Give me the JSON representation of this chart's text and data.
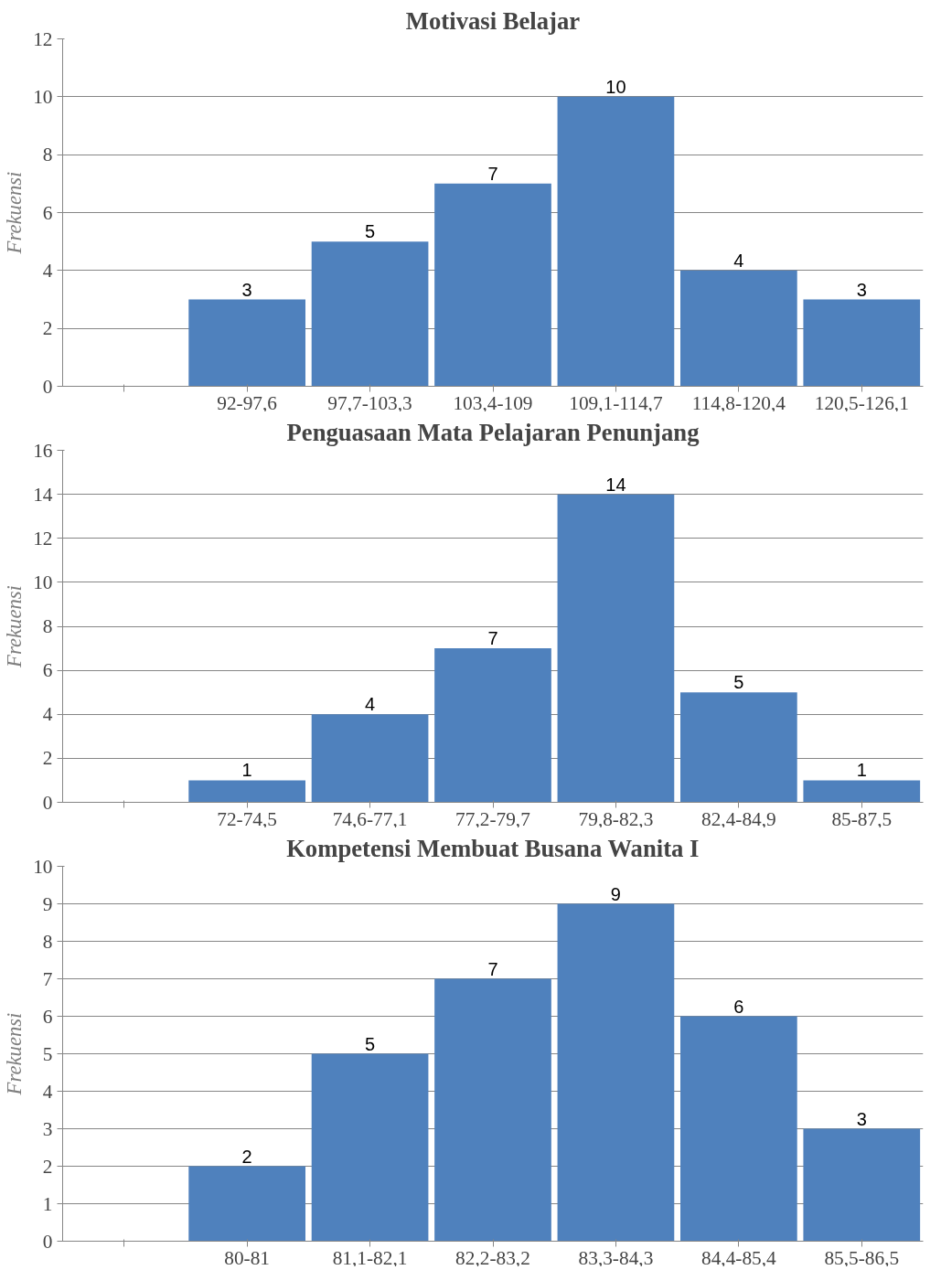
{
  "chart_data": [
    {
      "type": "bar",
      "title": "Motivasi Belajar",
      "ylabel": "Frekuensi",
      "categories": [
        null,
        "92-97,6",
        "97,7-103,3",
        "103,4-109",
        "109,1-114,7",
        "114,8-120,4",
        "120,5-126,1"
      ],
      "values": [
        null,
        3,
        5,
        7,
        10,
        4,
        3
      ],
      "color": "#4f81bd",
      "ylim": [
        0,
        12
      ],
      "yticks": [
        0,
        2,
        4,
        6,
        8,
        10,
        12
      ],
      "grid": "y",
      "data_labels": true
    },
    {
      "type": "bar",
      "title": "Penguasaan Mata Pelajaran Penunjang",
      "ylabel": "Frekuensi",
      "categories": [
        null,
        "72-74,5",
        "74,6-77,1",
        "77,2-79,7",
        "79,8-82,3",
        "82,4-84,9",
        "85-87,5"
      ],
      "values": [
        null,
        1,
        4,
        7,
        14,
        5,
        1
      ],
      "color": "#4f81bd",
      "ylim": [
        0,
        16
      ],
      "yticks": [
        0,
        2,
        4,
        6,
        8,
        10,
        12,
        14,
        16
      ],
      "grid": "y",
      "data_labels": true
    },
    {
      "type": "bar",
      "title": "Kompetensi Membuat Busana Wanita I",
      "ylabel": "Frekuensi",
      "categories": [
        null,
        "80-81",
        "81,1-82,1",
        "82,2-83,2",
        "83,3-84,3",
        "84,4-85,4",
        "85,5-86,5"
      ],
      "values": [
        null,
        2,
        5,
        7,
        9,
        6,
        3
      ],
      "color": "#4f81bd",
      "ylim": [
        0,
        10
      ],
      "yticks": [
        0,
        1,
        2,
        3,
        4,
        5,
        6,
        7,
        8,
        9,
        10
      ],
      "grid": "y",
      "data_labels": true
    }
  ]
}
